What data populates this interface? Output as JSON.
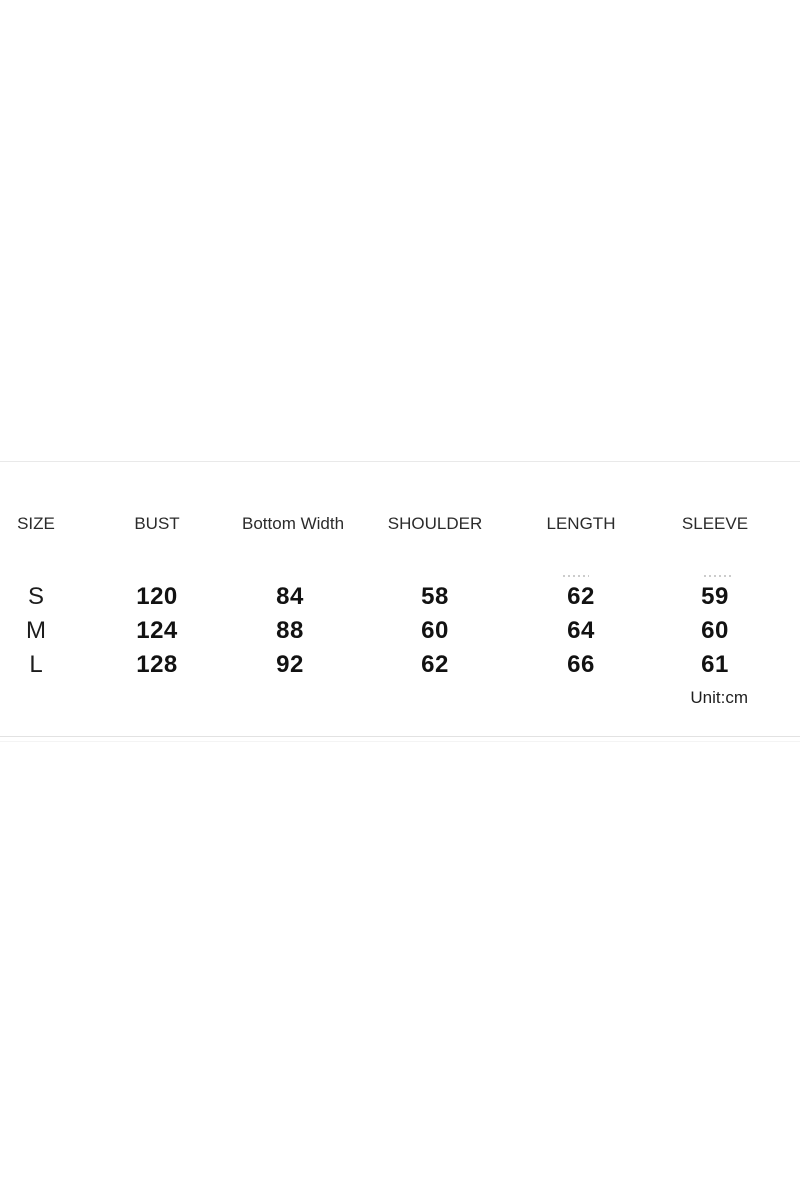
{
  "size_chart": {
    "columns": [
      "SIZE",
      "BUST",
      "Bottom Width",
      "SHOULDER",
      "LENGTH",
      "SLEEVE"
    ],
    "rows": [
      {
        "size": "S",
        "bust": "120",
        "bottom_width": "84",
        "shoulder": "58",
        "length": "62",
        "sleeve": "59"
      },
      {
        "size": "M",
        "bust": "124",
        "bottom_width": "88",
        "shoulder": "60",
        "length": "64",
        "sleeve": "60"
      },
      {
        "size": "L",
        "bust": "128",
        "bottom_width": "92",
        "shoulder": "62",
        "length": "66",
        "sleeve": "61"
      }
    ],
    "unit_label": "Unit:cm"
  },
  "chart_data": {
    "type": "table",
    "columns": [
      "SIZE",
      "BUST",
      "Bottom Width",
      "SHOULDER",
      "LENGTH",
      "SLEEVE"
    ],
    "rows": [
      [
        "S",
        120,
        84,
        58,
        62,
        59
      ],
      [
        "M",
        124,
        88,
        60,
        64,
        60
      ],
      [
        "L",
        128,
        92,
        62,
        66,
        61
      ]
    ],
    "note": "Unit:cm"
  },
  "colors": {
    "background": "#ffffff",
    "divider": "#e9e9e9",
    "header_text": "#2b2b2b",
    "value_text": "#121212"
  }
}
